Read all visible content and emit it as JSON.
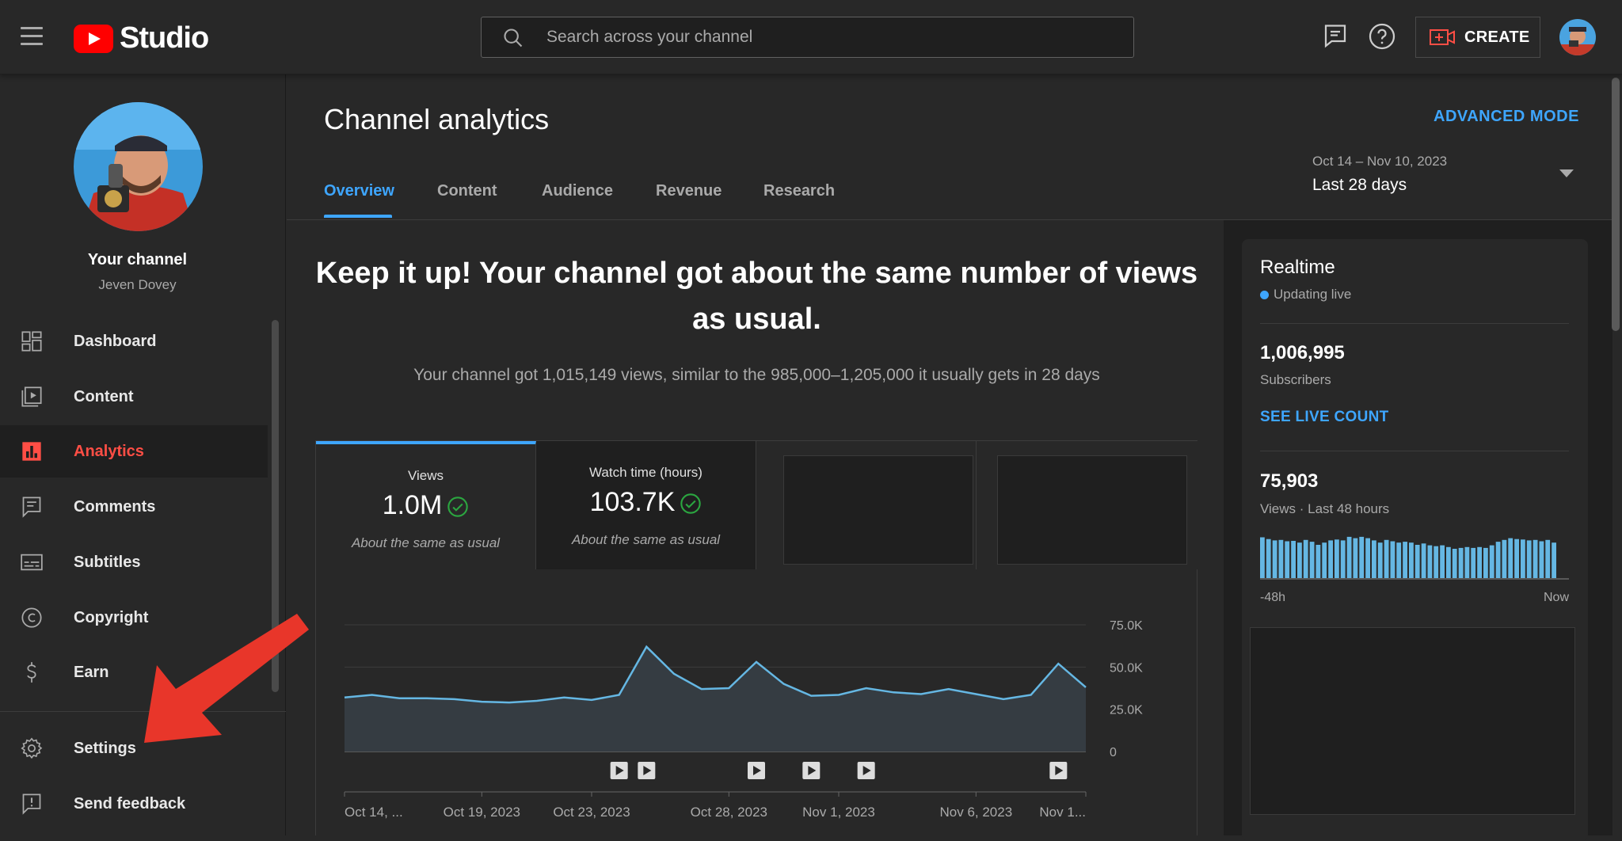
{
  "app": {
    "logo_text": "Studio",
    "search_placeholder": "Search across your channel",
    "create_label": "CREATE"
  },
  "channel": {
    "title": "Your channel",
    "name": "Jeven Dovey"
  },
  "sidebar": {
    "items": [
      {
        "label": "Dashboard",
        "icon": "dashboard-icon"
      },
      {
        "label": "Content",
        "icon": "content-icon"
      },
      {
        "label": "Analytics",
        "icon": "analytics-icon",
        "active": true
      },
      {
        "label": "Comments",
        "icon": "comments-icon"
      },
      {
        "label": "Subtitles",
        "icon": "subtitles-icon"
      },
      {
        "label": "Copyright",
        "icon": "copyright-icon"
      },
      {
        "label": "Earn",
        "icon": "earn-icon"
      },
      {
        "label": "Settings",
        "icon": "gear-icon"
      },
      {
        "label": "Send feedback",
        "icon": "feedback-icon"
      }
    ]
  },
  "page": {
    "title": "Channel analytics",
    "advanced_mode": "ADVANCED MODE",
    "tabs": [
      "Overview",
      "Content",
      "Audience",
      "Revenue",
      "Research"
    ],
    "date_range": "Oct 14 – Nov 10, 2023",
    "date_label": "Last 28 days"
  },
  "overview": {
    "headline": "Keep it up! Your channel got about the same number of views as usual.",
    "subline": "Your channel got 1,015,149 views, similar to the 985,000–1,205,000 it usually gets in 28 days",
    "metrics": [
      {
        "label": "Views",
        "value": "1.0M",
        "note": "About the same as usual"
      },
      {
        "label": "Watch time (hours)",
        "value": "103.7K",
        "note": "About the same as usual"
      }
    ]
  },
  "chart_data": {
    "type": "area",
    "x_ticks": [
      "Oct 14, ...",
      "Oct 19, 2023",
      "Oct 23, 2023",
      "Oct 28, 2023",
      "Nov 1, 2023",
      "Nov 6, 2023",
      "Nov 1..."
    ],
    "y_ticks": [
      "75.0K",
      "50.0K",
      "25.0K",
      "0"
    ],
    "ylim": [
      0,
      75000
    ],
    "values": [
      32000,
      33500,
      31500,
      31500,
      31000,
      29500,
      29000,
      30000,
      32000,
      30500,
      33500,
      62000,
      46000,
      37000,
      37500,
      53000,
      40000,
      33000,
      33500,
      37500,
      35000,
      34000,
      37000,
      34000,
      31000,
      33500,
      52000,
      38000
    ],
    "video_markers": [
      10,
      11,
      15,
      17,
      19,
      26
    ],
    "color": "#65b7e3"
  },
  "realtime": {
    "title": "Realtime",
    "status": "Updating live",
    "subscribers": "1,006,995",
    "subscribers_label": "Subscribers",
    "see_live": "SEE LIVE COUNT",
    "views": "75,903",
    "views_label": "Views · Last 48 hours",
    "axis_start": "-48h",
    "axis_end": "Now",
    "bars": [
      0.92,
      0.88,
      0.85,
      0.86,
      0.83,
      0.84,
      0.8,
      0.86,
      0.82,
      0.75,
      0.8,
      0.85,
      0.87,
      0.85,
      0.93,
      0.9,
      0.93,
      0.9,
      0.85,
      0.8,
      0.86,
      0.83,
      0.8,
      0.82,
      0.8,
      0.75,
      0.78,
      0.74,
      0.72,
      0.74,
      0.7,
      0.66,
      0.68,
      0.7,
      0.68,
      0.7,
      0.68,
      0.74,
      0.82,
      0.86,
      0.9,
      0.88,
      0.87,
      0.85,
      0.86,
      0.83,
      0.86,
      0.8
    ],
    "bar_color": "#65b7e3"
  }
}
